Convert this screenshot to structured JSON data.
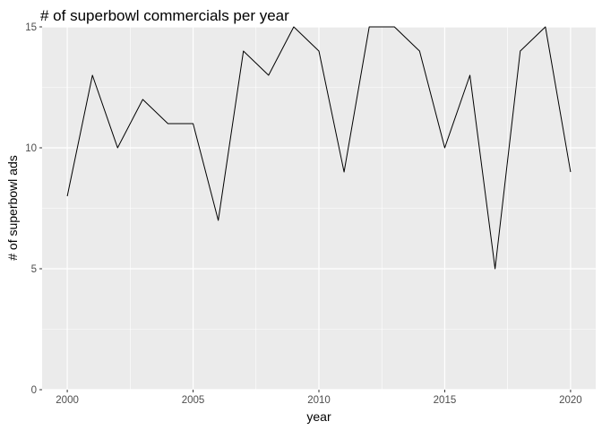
{
  "chart_data": {
    "type": "line",
    "title": "# of superbowl commercials per year",
    "xlabel": "year",
    "ylabel": "# of superbowl ads",
    "x": [
      2000,
      2001,
      2002,
      2003,
      2004,
      2005,
      2006,
      2007,
      2008,
      2009,
      2010,
      2011,
      2012,
      2013,
      2014,
      2015,
      2016,
      2017,
      2018,
      2019,
      2020
    ],
    "series": [
      {
        "values": [
          8,
          13,
          10,
          12,
          11,
          11,
          7,
          14,
          13,
          15,
          14,
          9,
          15,
          15,
          14,
          10,
          13,
          5,
          14,
          15,
          9
        ]
      }
    ],
    "xlim": [
      1999,
      2021
    ],
    "ylim": [
      0,
      15
    ],
    "xticks": [
      2000,
      2005,
      2010,
      2015,
      2020
    ],
    "yticks": [
      0,
      5,
      10,
      15
    ],
    "grid": true,
    "background_color": "#ebebeb",
    "line_color": "#000000"
  }
}
